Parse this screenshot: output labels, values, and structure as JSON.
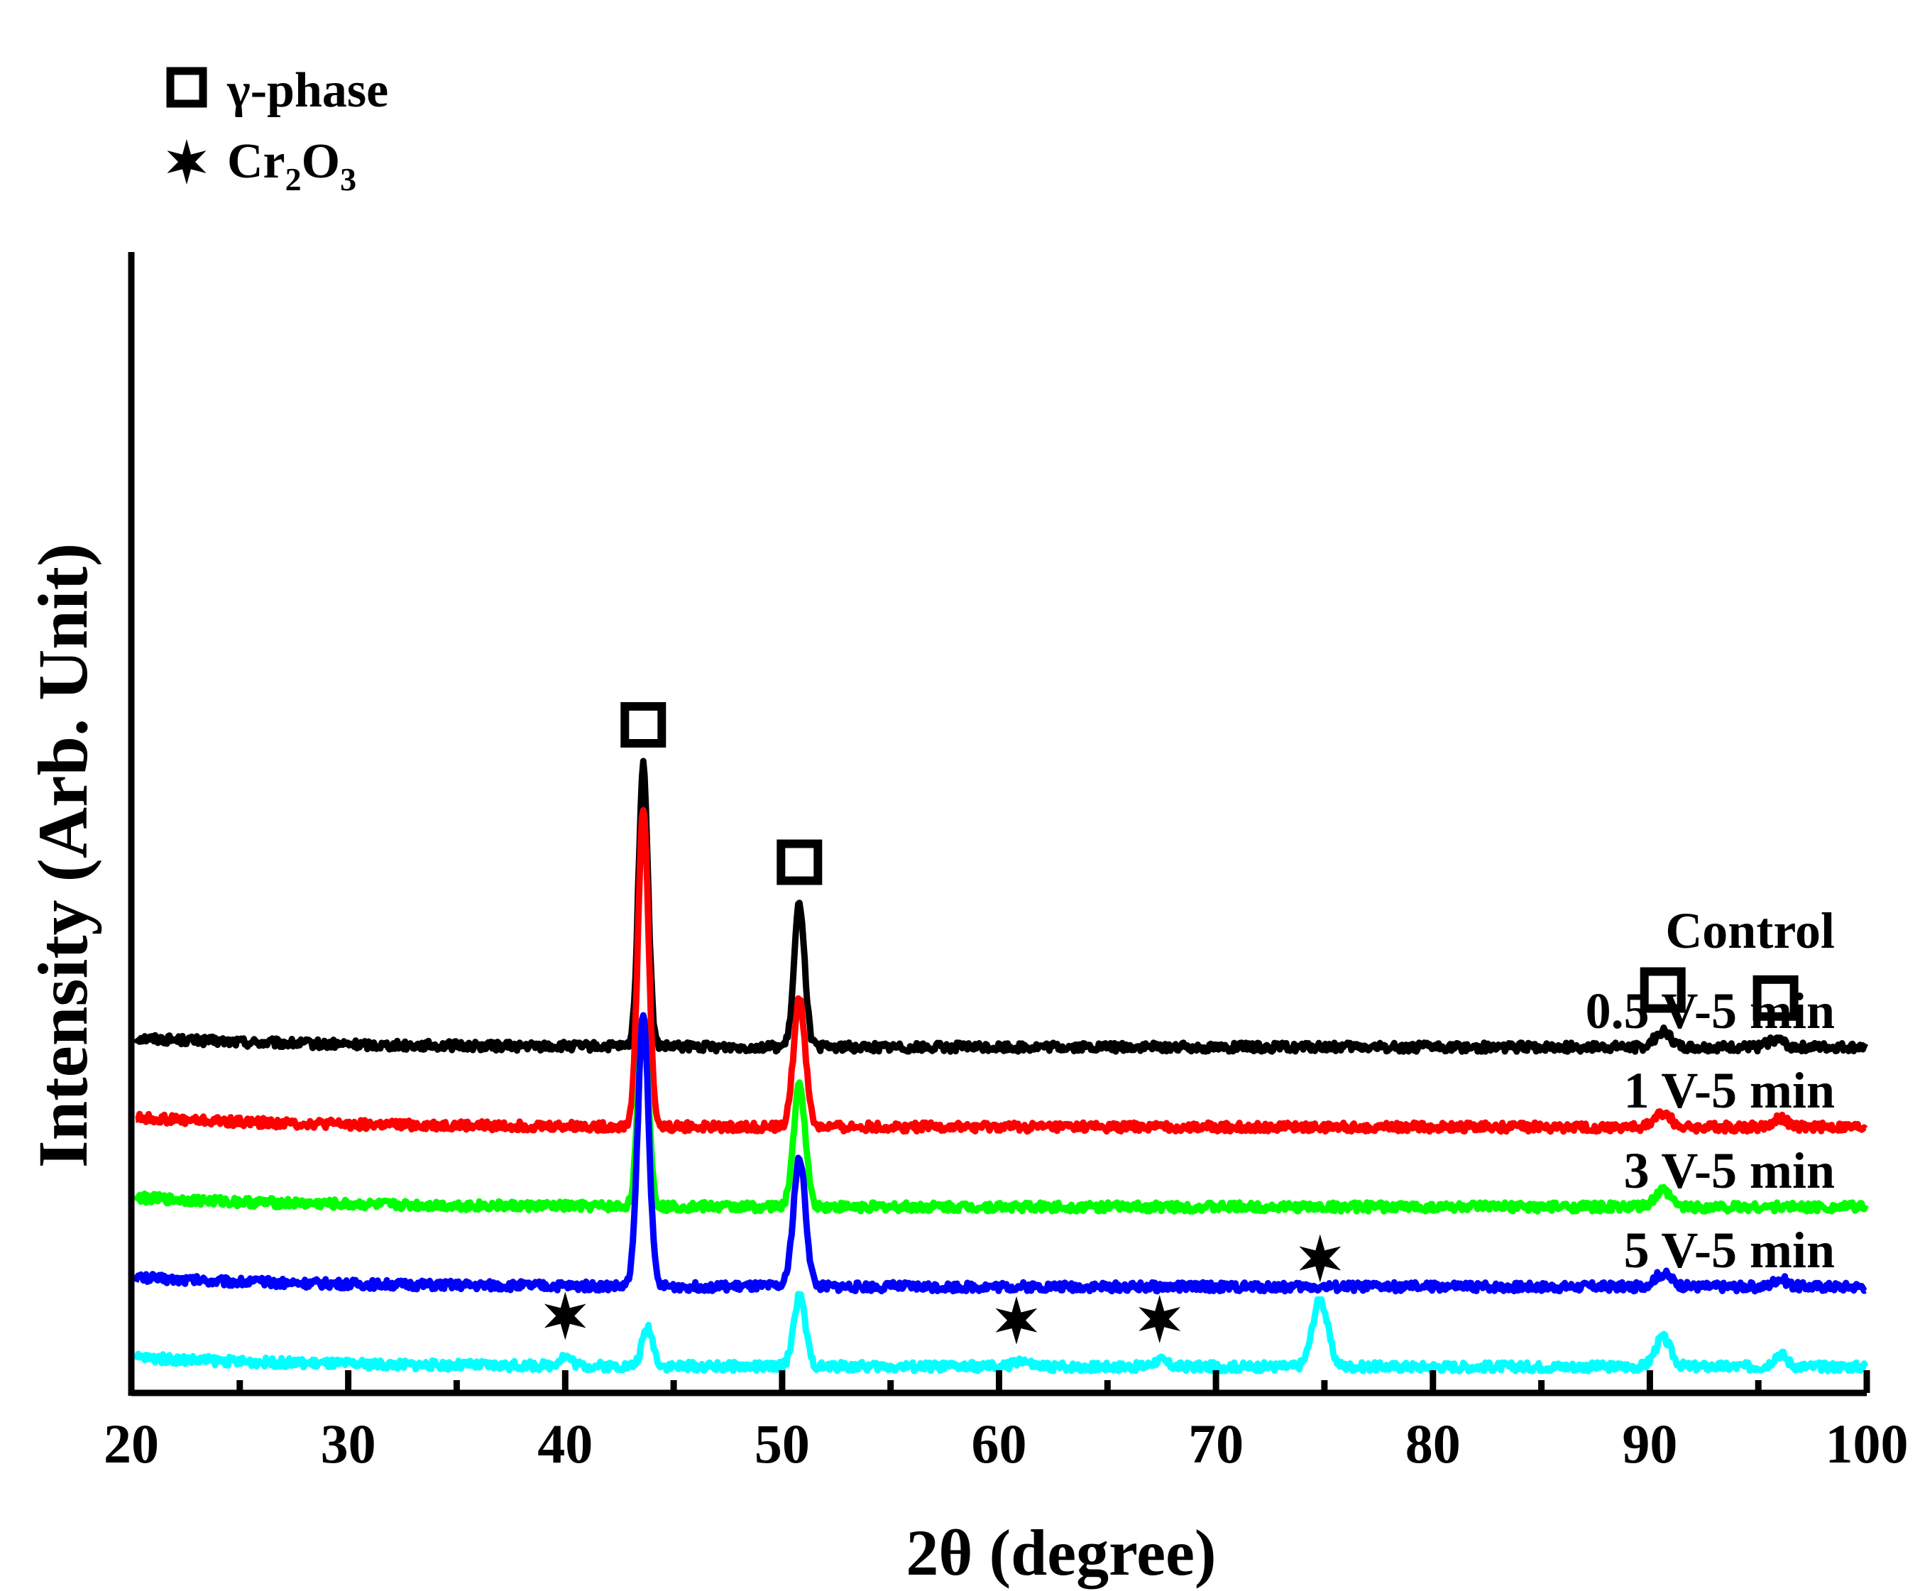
{
  "chart_data": {
    "type": "line",
    "xlabel": "2θ (degree)",
    "ylabel": "Intensity (Arb. Unit)",
    "xlim": [
      20,
      100
    ],
    "x_ticks": [
      "20",
      "30",
      "40",
      "50",
      "60",
      "70",
      "80",
      "90",
      "100"
    ],
    "y_ticks_shown": false,
    "grid": false,
    "legend": {
      "position": "top-left",
      "entries": [
        {
          "marker": "open-square",
          "label": "γ-phase"
        },
        {
          "marker": "star",
          "label_main": "Cr",
          "sub1": "2",
          "label_mid": "O",
          "sub2": "3"
        }
      ]
    },
    "series": [
      {
        "name": "Control",
        "color": "#000000",
        "baseline": 0.9,
        "peaks": [
          {
            "x": 43.6,
            "h": 0.88,
            "w": 0.22
          },
          {
            "x": 50.8,
            "h": 0.45,
            "w": 0.24
          },
          {
            "x": 90.6,
            "h": 0.05,
            "w": 0.35
          },
          {
            "x": 95.8,
            "h": 0.025,
            "w": 0.35
          }
        ]
      },
      {
        "name": "0.5 V-5 min",
        "color": "#ff0000",
        "baseline": 0.65,
        "peaks": [
          {
            "x": 43.6,
            "h": 1.0,
            "w": 0.24
          },
          {
            "x": 50.8,
            "h": 0.4,
            "w": 0.27
          },
          {
            "x": 90.6,
            "h": 0.045,
            "w": 0.35
          },
          {
            "x": 96.0,
            "h": 0.03,
            "w": 0.3
          }
        ]
      },
      {
        "name": "1 V-5 min",
        "color": "#00ff00",
        "baseline": 0.4,
        "peaks": [
          {
            "x": 43.6,
            "h": 0.58,
            "w": 0.24
          },
          {
            "x": 50.8,
            "h": 0.38,
            "w": 0.27
          },
          {
            "x": 90.6,
            "h": 0.05,
            "w": 0.35
          }
        ]
      },
      {
        "name": "3 V-5 min",
        "color": "#0000ff",
        "baseline": 0.15,
        "peaks": [
          {
            "x": 43.6,
            "h": 0.85,
            "w": 0.25
          },
          {
            "x": 50.8,
            "h": 0.4,
            "w": 0.28
          },
          {
            "x": 90.6,
            "h": 0.04,
            "w": 0.4
          },
          {
            "x": 96.0,
            "h": 0.025,
            "w": 0.3
          }
        ]
      },
      {
        "name": "5 V-5 min",
        "color": "#00ffff",
        "baseline": -0.1,
        "peaks": [
          {
            "x": 40.0,
            "h": 0.03,
            "w": 0.3
          },
          {
            "x": 43.8,
            "h": 0.12,
            "w": 0.25
          },
          {
            "x": 50.8,
            "h": 0.22,
            "w": 0.27
          },
          {
            "x": 61.0,
            "h": 0.02,
            "w": 0.3
          },
          {
            "x": 67.4,
            "h": 0.02,
            "w": 0.3
          },
          {
            "x": 74.8,
            "h": 0.21,
            "w": 0.35
          },
          {
            "x": 90.6,
            "h": 0.09,
            "w": 0.35
          },
          {
            "x": 96.0,
            "h": 0.04,
            "w": 0.3
          }
        ]
      }
    ],
    "annotations": [
      {
        "marker": "open-square",
        "x": 43.6,
        "series": "Control"
      },
      {
        "marker": "open-square",
        "x": 50.8,
        "series": "Control"
      },
      {
        "marker": "open-square",
        "x": 90.6,
        "series": "Control"
      },
      {
        "marker": "open-square",
        "x": 95.8,
        "series": "Control"
      },
      {
        "marker": "star",
        "x": 40.0,
        "series": "5 V-5 min"
      },
      {
        "marker": "star",
        "x": 60.8,
        "series": "5 V-5 min"
      },
      {
        "marker": "star",
        "x": 67.4,
        "series": "5 V-5 min"
      },
      {
        "marker": "star",
        "x": 74.8,
        "series": "5 V-5 min"
      }
    ]
  }
}
